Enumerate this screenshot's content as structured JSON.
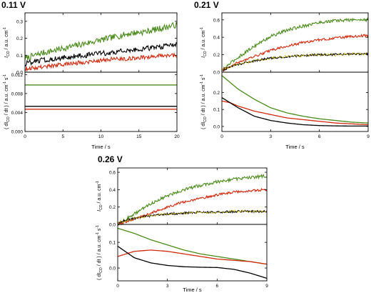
{
  "panels": [
    {
      "title": "0.11 V"
    },
    {
      "title": "0.21 V"
    },
    {
      "title": "0.26 V"
    }
  ],
  "chart_data": [
    {
      "type": "line",
      "title": "0.11 V",
      "xlabel": "Time / s",
      "xlim": [
        0,
        20
      ],
      "xticks": [
        "0",
        "5",
        "10",
        "15",
        "20"
      ],
      "top": {
        "ylabel_main": "I",
        "ylabel_sub": "CO",
        "ylabel_rest": " / a.u. cm",
        "ylabel_sup": "-1",
        "ylim": [
          0,
          0.35
        ],
        "yticks": [
          "0.0",
          "0.1",
          "0.2",
          "0.3"
        ],
        "series": [
          {
            "color": "#4a8a1a",
            "x": [
              0,
              2,
              4,
              6,
              8,
              10,
              12,
              14,
              16,
              18,
              20
            ],
            "values": [
              0.08,
              0.11,
              0.13,
              0.15,
              0.17,
              0.19,
              0.21,
              0.23,
              0.24,
              0.26,
              0.28
            ],
            "noise": 0.018
          },
          {
            "color": "#000000",
            "x": [
              0,
              2,
              4,
              6,
              8,
              10,
              12,
              14,
              16,
              18,
              20
            ],
            "values": [
              0.05,
              0.07,
              0.08,
              0.09,
              0.1,
              0.11,
              0.12,
              0.13,
              0.14,
              0.15,
              0.16
            ],
            "noise": 0.015
          },
          {
            "color": "#d12a0e",
            "x": [
              0,
              2,
              4,
              6,
              8,
              10,
              12,
              14,
              16,
              18,
              20
            ],
            "values": [
              0.02,
              0.03,
              0.04,
              0.05,
              0.06,
              0.07,
              0.08,
              0.08,
              0.09,
              0.1,
              0.1
            ],
            "noise": 0.012
          }
        ]
      },
      "bottom": {
        "ylabel_text": "( dI",
        "ylabel_sub": "CO",
        "ylabel_rest": " / dt ) / a.u. cm",
        "ylabel_sup1": "-1",
        "ylabel_mid": " s",
        "ylabel_sup2": "-1",
        "ylim": [
          0,
          0.0125
        ],
        "yticks": [
          "0.000",
          "0.004",
          "0.008",
          "0.012"
        ],
        "series": [
          {
            "color": "#4a8a1a",
            "x": [
              0,
              20
            ],
            "values": [
              0.0098,
              0.0098
            ]
          },
          {
            "color": "#000000",
            "x": [
              0,
              20
            ],
            "values": [
              0.0053,
              0.0053
            ]
          },
          {
            "color": "#d12a0e",
            "x": [
              0,
              20
            ],
            "values": [
              0.0047,
              0.0047
            ]
          }
        ]
      }
    },
    {
      "type": "line",
      "title": "0.21 V",
      "xlabel": "Time / s",
      "xlim": [
        0,
        9
      ],
      "xticks": [
        "0",
        "3",
        "6",
        "9"
      ],
      "top": {
        "ylabel_main": "I",
        "ylabel_sub": "CO",
        "ylabel_rest": " / a.u. cm",
        "ylabel_sup": "-1",
        "ylim": [
          0,
          0.68
        ],
        "yticks": [
          "0.0",
          "0.2",
          "0.4",
          "0.6"
        ],
        "series": [
          {
            "color": "#4a8a1a",
            "x": [
              0,
              0.5,
              1,
              2,
              3,
              4,
              5,
              6,
              7,
              8,
              9
            ],
            "values": [
              0.02,
              0.1,
              0.17,
              0.3,
              0.41,
              0.48,
              0.53,
              0.57,
              0.59,
              0.6,
              0.6
            ],
            "noise": 0.018
          },
          {
            "color": "#d12a0e",
            "x": [
              0,
              0.5,
              1,
              2,
              3,
              4,
              5,
              6,
              7,
              8,
              9
            ],
            "values": [
              0.02,
              0.07,
              0.11,
              0.18,
              0.25,
              0.3,
              0.34,
              0.37,
              0.39,
              0.41,
              0.42
            ],
            "noise": 0.014
          },
          {
            "color": "#000000",
            "x": [
              0,
              0.5,
              1,
              2,
              3,
              4,
              5,
              6,
              7,
              8,
              9
            ],
            "values": [
              0.02,
              0.06,
              0.09,
              0.13,
              0.16,
              0.18,
              0.19,
              0.2,
              0.2,
              0.21,
              0.21
            ],
            "noise": 0.012
          },
          {
            "color": "#c8b400",
            "x": [
              0,
              0.5,
              1,
              2,
              3,
              4,
              5,
              6,
              7,
              8,
              9
            ],
            "values": [
              0.02,
              0.06,
              0.09,
              0.13,
              0.16,
              0.18,
              0.19,
              0.2,
              0.2,
              0.21,
              0.21
            ],
            "noise": 0.012
          }
        ]
      },
      "bottom": {
        "ylabel_text": "( dI",
        "ylabel_sub": "CO",
        "ylabel_rest": " / dt ) / a.u. cm",
        "ylabel_sup1": "-1",
        "ylabel_mid": " s",
        "ylabel_sup2": "-1",
        "ylim": [
          -0.03,
          0.32
        ],
        "yticks": [
          "0.0",
          "0.1",
          "0.2"
        ],
        "series": [
          {
            "color": "#4a8a1a",
            "x": [
              0,
              0.5,
              1,
              2,
              3,
              4,
              5,
              6,
              7,
              8,
              9
            ],
            "values": [
              0.3,
              0.26,
              0.22,
              0.16,
              0.11,
              0.08,
              0.06,
              0.045,
              0.035,
              0.025,
              0.02
            ]
          },
          {
            "color": "#d12a0e",
            "x": [
              0,
              0.5,
              1,
              2,
              3,
              4,
              5,
              6,
              7,
              8,
              9
            ],
            "values": [
              0.15,
              0.14,
              0.12,
              0.09,
              0.07,
              0.05,
              0.04,
              0.03,
              0.02,
              0.015,
              0.01
            ]
          },
          {
            "color": "#000000",
            "x": [
              0,
              0.5,
              1,
              2,
              3,
              4,
              5,
              6,
              7,
              8,
              9
            ],
            "values": [
              0.17,
              0.14,
              0.11,
              0.06,
              0.035,
              0.02,
              0.01,
              0.005,
              0.003,
              0.002,
              0.002
            ]
          }
        ]
      }
    },
    {
      "type": "line",
      "title": "0.26 V",
      "xlabel": "Time / s",
      "xlim": [
        0,
        9
      ],
      "xticks": [
        "0",
        "3",
        "6",
        "9"
      ],
      "top": {
        "ylabel_main": "I",
        "ylabel_sub": "CO",
        "ylabel_rest": " / a.u. cm",
        "ylabel_sup": "-1",
        "ylim": [
          0,
          0.65
        ],
        "yticks": [
          "0.0",
          "0.2",
          "0.4",
          "0.6"
        ],
        "series": [
          {
            "color": "#4a8a1a",
            "x": [
              0,
              1,
              2,
              3,
              4,
              5,
              6,
              7,
              8,
              9
            ],
            "values": [
              0.0,
              0.12,
              0.24,
              0.33,
              0.4,
              0.45,
              0.49,
              0.52,
              0.54,
              0.56
            ],
            "noise": 0.018
          },
          {
            "color": "#d12a0e",
            "x": [
              0,
              1,
              2,
              3,
              4,
              5,
              6,
              7,
              8,
              9
            ],
            "values": [
              0.0,
              0.06,
              0.13,
              0.2,
              0.26,
              0.3,
              0.34,
              0.37,
              0.39,
              0.4
            ],
            "noise": 0.014
          },
          {
            "color": "#000000",
            "x": [
              0,
              1,
              2,
              3,
              4,
              5,
              6,
              7,
              8,
              9
            ],
            "values": [
              0.02,
              0.07,
              0.1,
              0.12,
              0.13,
              0.14,
              0.14,
              0.15,
              0.15,
              0.15
            ],
            "noise": 0.012
          },
          {
            "color": "#c8b400",
            "x": [
              0,
              1,
              2,
              3,
              4,
              5,
              6,
              7,
              8,
              9
            ],
            "values": [
              0.02,
              0.07,
              0.1,
              0.12,
              0.13,
              0.14,
              0.14,
              0.15,
              0.15,
              0.15
            ],
            "noise": 0.012
          }
        ]
      },
      "bottom": {
        "ylabel_text": "( dI",
        "ylabel_sub": "CO",
        "ylabel_rest": " / dt ) / a.u. cm",
        "ylabel_sup1": "-1",
        "ylabel_mid": " s",
        "ylabel_sup2": "-1",
        "ylim": [
          -0.05,
          0.17
        ],
        "yticks": [
          "0.0",
          "0.1"
        ],
        "series": [
          {
            "color": "#4a8a1a",
            "x": [
              0,
              1,
              2,
              3,
              4,
              5,
              6,
              7,
              8,
              9
            ],
            "values": [
              0.155,
              0.135,
              0.11,
              0.09,
              0.07,
              0.055,
              0.045,
              0.035,
              0.025,
              0.015
            ]
          },
          {
            "color": "#d12a0e",
            "x": [
              0,
              1,
              2,
              3,
              4,
              5,
              6,
              7,
              8,
              9
            ],
            "values": [
              0.045,
              0.065,
              0.07,
              0.065,
              0.055,
              0.045,
              0.035,
              0.03,
              0.025,
              0.015
            ]
          },
          {
            "color": "#000000",
            "x": [
              0,
              1,
              2,
              3,
              4,
              5,
              6,
              7,
              8,
              9
            ],
            "values": [
              0.085,
              0.04,
              0.02,
              0.01,
              0.005,
              0.003,
              0.002,
              -0.005,
              -0.02,
              -0.04
            ]
          }
        ]
      }
    }
  ]
}
